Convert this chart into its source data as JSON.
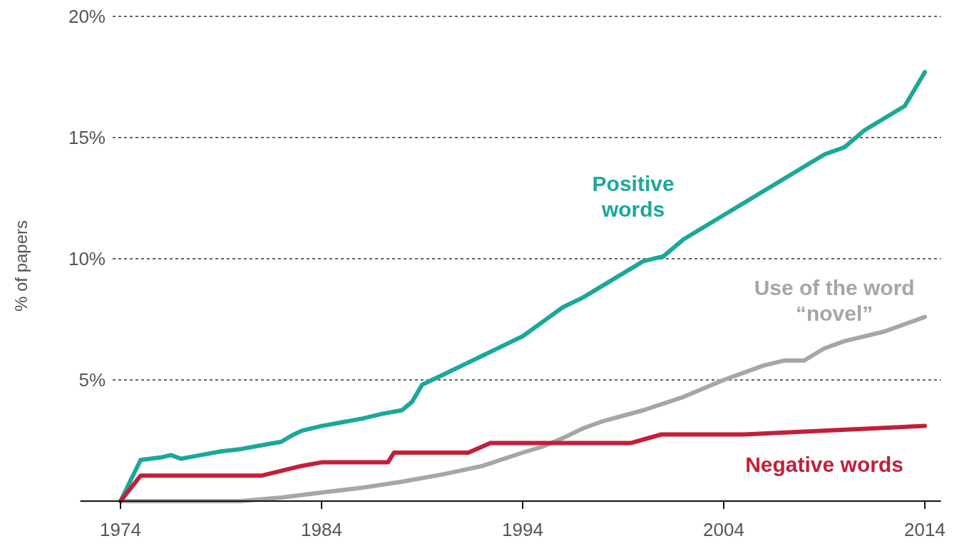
{
  "chart_data": {
    "type": "line",
    "ylabel": "% of papers",
    "xlim": [
      1972,
      2014.8
    ],
    "ylim": [
      0,
      20
    ],
    "xticks": [
      1974,
      1984,
      1994,
      2004,
      2014
    ],
    "yticks": [
      {
        "value": 0,
        "label": null
      },
      {
        "value": 5,
        "label": "5%"
      },
      {
        "value": 10,
        "label": "10%"
      },
      {
        "value": 15,
        "label": "15%"
      },
      {
        "value": 20,
        "label": "20%"
      }
    ],
    "grid": "y",
    "marker": "none",
    "line_style": "solid",
    "series": [
      {
        "name": "Positive words",
        "color": "#1aa89a",
        "x": [
          1974,
          1975,
          1976,
          1976.5,
          1977,
          1978,
          1979,
          1980,
          1981,
          1982,
          1982.5,
          1983,
          1984,
          1985,
          1986,
          1987,
          1988,
          1988.5,
          1989,
          1990,
          1991,
          1992,
          1993,
          1994,
          1995,
          1996,
          1997,
          1998,
          1999,
          2000,
          2001,
          2002,
          2003,
          2004,
          2005,
          2006,
          2007,
          2008,
          2009,
          2010,
          2011,
          2012,
          2013,
          2014
        ],
        "values": [
          0,
          1.7,
          1.8,
          1.9,
          1.75,
          1.9,
          2.05,
          2.15,
          2.3,
          2.45,
          2.7,
          2.9,
          3.1,
          3.25,
          3.4,
          3.6,
          3.75,
          4.1,
          4.8,
          5.2,
          5.6,
          6.0,
          6.4,
          6.8,
          7.4,
          8.0,
          8.4,
          8.9,
          9.4,
          9.9,
          10.1,
          10.8,
          11.3,
          11.8,
          12.3,
          12.8,
          13.3,
          13.8,
          14.3,
          14.6,
          15.3,
          15.8,
          16.3,
          17.7
        ]
      },
      {
        "name": "Use of the word “novel”",
        "color": "#a6a6a6",
        "x": [
          1974,
          1980,
          1982,
          1984,
          1986,
          1988,
          1990,
          1992,
          1994,
          1995,
          1996,
          1997,
          1998,
          2000,
          2002,
          2004,
          2006,
          2007,
          2008,
          2009,
          2010,
          2012,
          2014
        ],
        "values": [
          0,
          0,
          0.15,
          0.35,
          0.55,
          0.8,
          1.1,
          1.45,
          2.0,
          2.25,
          2.6,
          3.0,
          3.3,
          3.75,
          4.3,
          5.0,
          5.6,
          5.8,
          5.8,
          6.3,
          6.6,
          7.0,
          7.6
        ]
      },
      {
        "name": "Negative words",
        "color": "#c41e3a",
        "x": [
          1974,
          1975,
          1981,
          1983,
          1984,
          1987.3,
          1987.6,
          1991.3,
          1992.4,
          1999.4,
          2000.9,
          2005,
          2014
        ],
        "values": [
          0,
          1.05,
          1.05,
          1.45,
          1.6,
          1.6,
          2.0,
          2.0,
          2.4,
          2.4,
          2.75,
          2.75,
          3.1
        ]
      }
    ]
  }
}
